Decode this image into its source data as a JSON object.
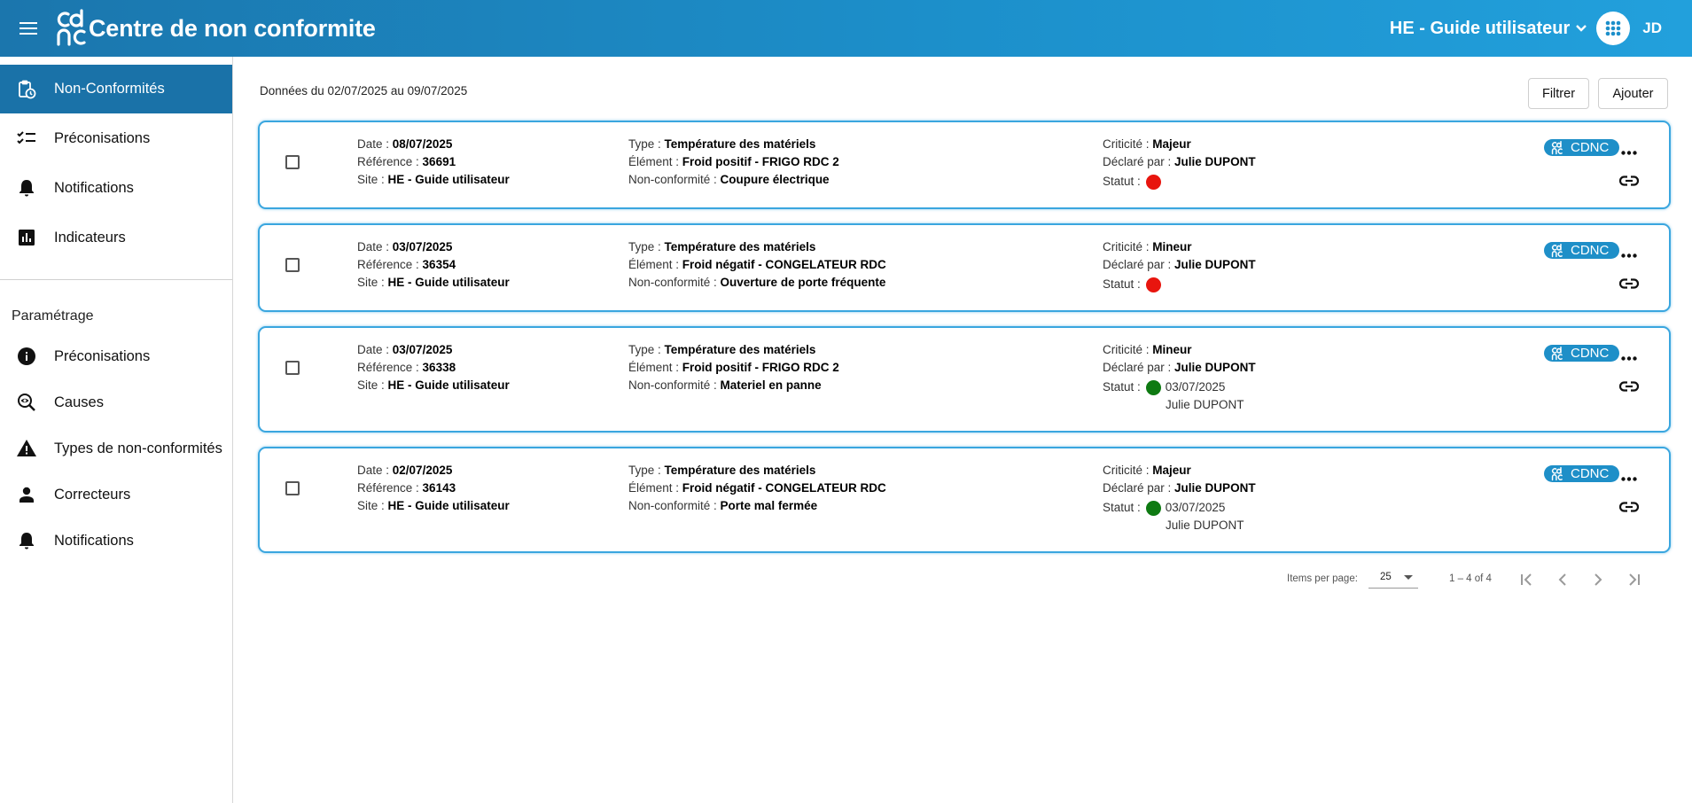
{
  "header": {
    "title": "Centre de non conformite",
    "site": "HE - Guide utilisateur",
    "avatar": "JD",
    "logo_icon": "cdnc-logo-icon",
    "colors": {
      "start": "#1b76ad",
      "end": "#22a0dc"
    }
  },
  "sidebar": {
    "items": [
      {
        "label": "Non-Conformités",
        "icon": "clipboard-clock-icon",
        "active": true
      },
      {
        "label": "Préconisations",
        "icon": "checklist-icon"
      },
      {
        "label": "Notifications",
        "icon": "bell-icon"
      },
      {
        "label": "Indicateurs",
        "icon": "bar-chart-icon"
      }
    ],
    "section_title": "Paramétrage",
    "param_items": [
      {
        "label": "Préconisations",
        "icon": "info-icon"
      },
      {
        "label": "Causes",
        "icon": "magnify-eye-icon"
      },
      {
        "label": "Types de non-conformités",
        "icon": "warning-icon"
      },
      {
        "label": "Correcteurs",
        "icon": "person-icon"
      },
      {
        "label": "Notifications",
        "icon": "bell-icon"
      }
    ]
  },
  "main": {
    "period": "Données du 02/07/2025 au 09/07/2025",
    "filter_label": "Filtrer",
    "add_label": "Ajouter"
  },
  "labels": {
    "date": "Date : ",
    "reference": "Référence : ",
    "site": "Site : ",
    "type": "Type : ",
    "element": "Élément : ",
    "nonconf": "Non-conformité : ",
    "criticite": "Criticité : ",
    "declare": "Déclaré par : ",
    "statut": "Statut : ",
    "badge": "CDNC"
  },
  "records": [
    {
      "date": "08/07/2025",
      "reference": "36691",
      "site": "HE - Guide utilisateur",
      "type": "Température des matériels",
      "element": "Froid positif - FRIGO RDC 2",
      "nonconf": "Coupure électrique",
      "criticite": "Majeur",
      "declare": "Julie DUPONT",
      "status_color": "#e8150e",
      "status_date": "",
      "status_user": ""
    },
    {
      "date": "03/07/2025",
      "reference": "36354",
      "site": "HE - Guide utilisateur",
      "type": "Température des matériels",
      "element": "Froid négatif - CONGELATEUR RDC",
      "nonconf": "Ouverture de porte fréquente",
      "criticite": "Mineur",
      "declare": "Julie DUPONT",
      "status_color": "#e8150e",
      "status_date": "",
      "status_user": ""
    },
    {
      "date": "03/07/2025",
      "reference": "36338",
      "site": "HE - Guide utilisateur",
      "type": "Température des matériels",
      "element": "Froid positif - FRIGO RDC 2",
      "nonconf": "Materiel en panne",
      "criticite": "Mineur",
      "declare": "Julie DUPONT",
      "status_color": "#0e7a12",
      "status_date": "03/07/2025",
      "status_user": "Julie DUPONT"
    },
    {
      "date": "02/07/2025",
      "reference": "36143",
      "site": "HE - Guide utilisateur",
      "type": "Température des matériels",
      "element": "Froid négatif - CONGELATEUR RDC",
      "nonconf": "Porte mal fermée",
      "criticite": "Majeur",
      "declare": "Julie DUPONT",
      "status_color": "#0e7a12",
      "status_date": "03/07/2025",
      "status_user": "Julie DUPONT"
    }
  ],
  "paginator": {
    "items_label": "Items per page:",
    "page_size": "25",
    "range": "1 – 4 of 4"
  }
}
